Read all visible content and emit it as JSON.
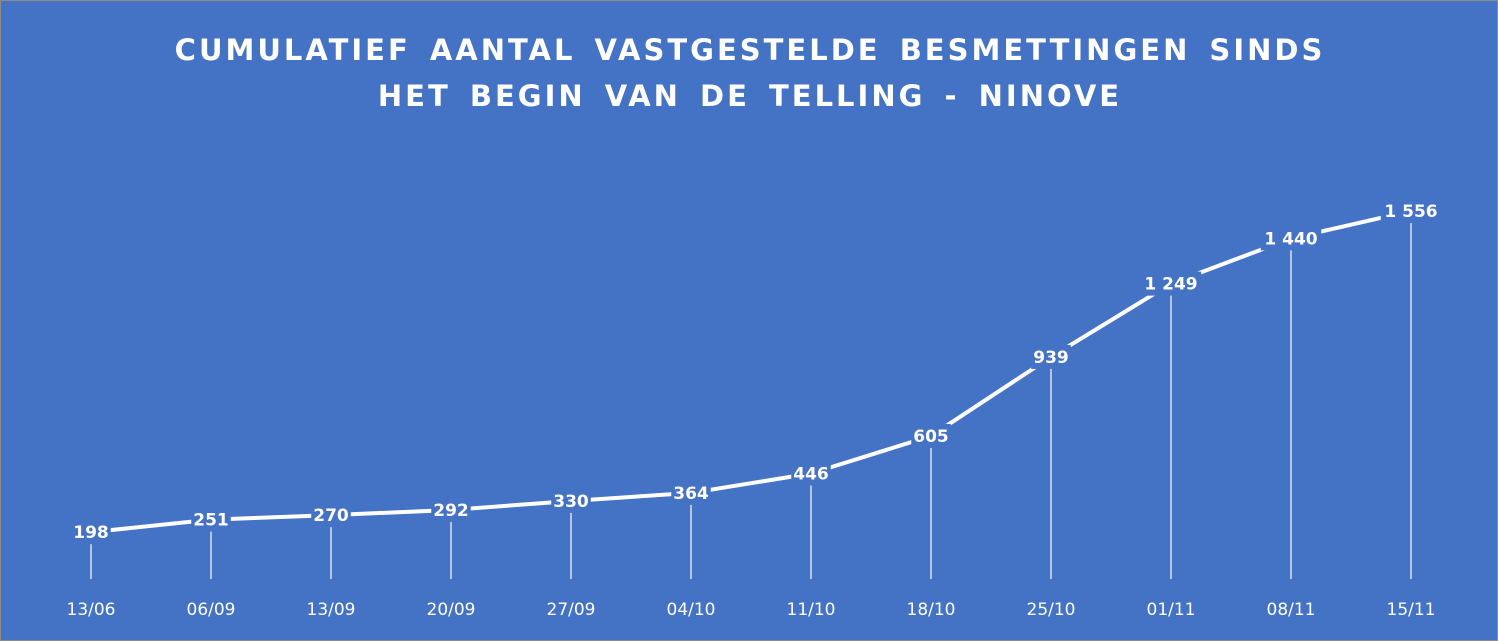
{
  "chart_data": {
    "type": "line",
    "title": "CUMULATIEF AANTAL VASTGESTELDE BESMETTINGEN SINDS HET BEGIN VAN DE TELLING - NINOVE",
    "categories": [
      "13/06",
      "06/09",
      "13/09",
      "20/09",
      "27/09",
      "04/10",
      "11/10",
      "18/10",
      "25/10",
      "01/11",
      "08/11",
      "15/11"
    ],
    "values": [
      198,
      251,
      270,
      292,
      330,
      364,
      446,
      605,
      939,
      1249,
      1440,
      1556
    ],
    "value_labels": [
      "198",
      "251",
      "270",
      "292",
      "330",
      "364",
      "446",
      "605",
      "939",
      "1 249",
      "1 440",
      "1 556"
    ],
    "color": "#ffffff",
    "drop_lines": true
  }
}
